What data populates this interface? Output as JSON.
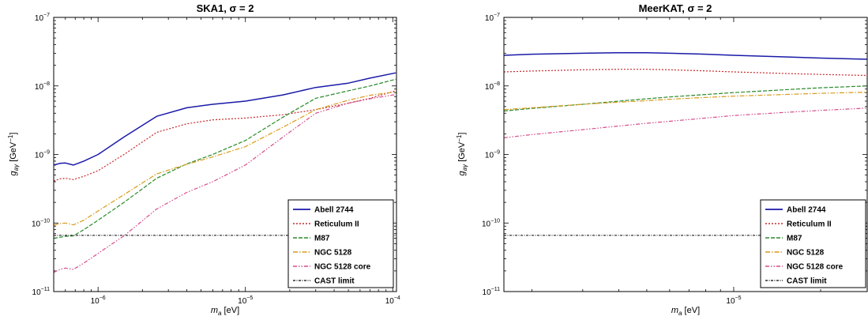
{
  "charts": [
    {
      "title": "SKA1, σ = 2",
      "xlabel": "m_a [eV]",
      "ylabel": "g_aγ [GeV^-1]"
    },
    {
      "title": "MeerKAT, σ = 2",
      "xlabel": "m_a [eV]",
      "ylabel": "g_aγ [GeV^-1]"
    }
  ],
  "chart_data": [
    {
      "type": "line",
      "title": "SKA1, σ = 2",
      "xlabel": "m_a [eV]",
      "ylabel": "g_aγ [GeV^-1]",
      "xscale": "log",
      "yscale": "log",
      "xlim": [
        5e-07,
        0.000106
      ],
      "ylim": [
        1e-11,
        1e-07
      ],
      "xticks": [
        {
          "v": 1e-06,
          "b": "10",
          "e": "−6"
        },
        {
          "v": 1e-05,
          "b": "10",
          "e": "−5"
        },
        {
          "v": 0.0001,
          "b": "10",
          "e": "−4"
        }
      ],
      "yticks": [
        {
          "v": 1e-11,
          "b": "10",
          "e": "−11"
        },
        {
          "v": 1e-10,
          "b": "10",
          "e": "−10"
        },
        {
          "v": 1e-09,
          "b": "10",
          "e": "−9"
        },
        {
          "v": 1e-08,
          "b": "10",
          "e": "−8"
        },
        {
          "v": 1e-07,
          "b": "10",
          "e": "−7"
        }
      ],
      "legend_position": "bottom-right",
      "series": [
        {
          "name": "Abell 2744",
          "color": "#1a1aa8",
          "dash": "",
          "width": 1.5,
          "x": [
            5e-07,
            5.5e-07,
            6e-07,
            6.8e-07,
            8e-07,
            1e-06,
            1.5e-06,
            2.5e-06,
            4e-06,
            6e-06,
            1e-05,
            1.8e-05,
            3e-05,
            5e-05,
            7e-05,
            0.000105
          ],
          "y": [
            7e-10,
            7.4e-10,
            7.5e-10,
            7e-10,
            8e-10,
            1e-09,
            1.8e-09,
            3.6e-09,
            4.8e-09,
            5.4e-09,
            6e-09,
            7.4e-09,
            9.5e-09,
            1.1e-08,
            1.3e-08,
            1.55e-08
          ]
        },
        {
          "name": "Reticulum II",
          "color": "#c8282c",
          "dash": "2,2",
          "width": 1.2,
          "x": [
            5e-07,
            5.5e-07,
            6e-07,
            6.8e-07,
            8e-07,
            1e-06,
            1.5e-06,
            2.5e-06,
            4e-06,
            6e-06,
            1e-05,
            1.8e-05,
            3e-05,
            5e-05,
            7e-05,
            0.000105
          ],
          "y": [
            4.1e-10,
            4.4e-10,
            4.5e-10,
            4.3e-10,
            4.8e-10,
            5.8e-10,
            1e-09,
            2.1e-09,
            2.8e-09,
            3.2e-09,
            3.4e-09,
            3.8e-09,
            4.5e-09,
            5.6e-09,
            6.6e-09,
            8.5e-09
          ]
        },
        {
          "name": "M87",
          "color": "#2a8a2a",
          "dash": "5,2",
          "width": 1.2,
          "x": [
            5e-07,
            5.5e-07,
            6e-07,
            6.8e-07,
            8e-07,
            1e-06,
            1.5e-06,
            2.5e-06,
            4e-06,
            6e-06,
            1e-05,
            1.8e-05,
            3e-05,
            5e-05,
            7e-05,
            0.000105
          ],
          "y": [
            6e-11,
            6.2e-11,
            6.4e-11,
            6.5e-11,
            8e-11,
            1.1e-10,
            2e-10,
            4.5e-10,
            7.3e-10,
            1e-09,
            1.6e-09,
            3.5e-09,
            6.6e-09,
            8.5e-09,
            1e-08,
            1.25e-08
          ]
        },
        {
          "name": "NGC 5128",
          "color": "#d89a1a",
          "dash": "6,2,1.5,2",
          "width": 1.2,
          "x": [
            5e-07,
            5.5e-07,
            6e-07,
            6.8e-07,
            8e-07,
            1e-06,
            1.5e-06,
            2.5e-06,
            4e-06,
            6e-06,
            1e-05,
            1.8e-05,
            3e-05,
            5e-05,
            7e-05,
            0.000105
          ],
          "y": [
            9.3e-11,
            9.8e-11,
            1e-10,
            9.4e-11,
            1.1e-10,
            1.5e-10,
            2.6e-10,
            5.2e-10,
            7.2e-10,
            9.2e-10,
            1.3e-09,
            2.5e-09,
            4.5e-09,
            6.2e-09,
            7.3e-09,
            8.2e-09
          ]
        },
        {
          "name": "NGC 5128 core",
          "color": "#d64d8c",
          "dash": "5,2,1.5,2,1.5,2",
          "width": 1.2,
          "x": [
            5e-07,
            5.5e-07,
            6e-07,
            6.8e-07,
            8e-07,
            1e-06,
            1.5e-06,
            2.5e-06,
            4e-06,
            6e-06,
            1e-05,
            1.8e-05,
            3e-05,
            5e-05,
            7e-05,
            0.000105
          ],
          "y": [
            1.9e-11,
            2.1e-11,
            2.2e-11,
            2.1e-11,
            2.6e-11,
            3.6e-11,
            6.5e-11,
            1.6e-10,
            2.8e-10,
            4e-10,
            7e-10,
            1.8e-09,
            4e-09,
            5.6e-09,
            6.5e-09,
            7.5e-09
          ]
        },
        {
          "name": "CAST limit",
          "color": "#000000",
          "dash": "3,1.5,1,1.5",
          "width": 1,
          "x": [
            5e-07,
            0.000106
          ],
          "y": [
            6.6e-11,
            6.6e-11
          ]
        }
      ]
    },
    {
      "type": "line",
      "title": "MeerKAT, σ = 2",
      "xlabel": "m_a [eV]",
      "ylabel": "g_aγ [GeV^-1]",
      "xscale": "log",
      "yscale": "log",
      "xlim": [
        1.6e-06,
        2.9e-05
      ],
      "ylim": [
        1e-11,
        1e-07
      ],
      "xticks": [
        {
          "v": 1e-05,
          "b": "10",
          "e": "−5"
        }
      ],
      "yticks": [
        {
          "v": 1e-11,
          "b": "10",
          "e": "−11"
        },
        {
          "v": 1e-10,
          "b": "10",
          "e": "−10"
        },
        {
          "v": 1e-09,
          "b": "10",
          "e": "−9"
        },
        {
          "v": 1e-08,
          "b": "10",
          "e": "−8"
        },
        {
          "v": 1e-07,
          "b": "10",
          "e": "−7"
        }
      ],
      "legend_position": "bottom-right",
      "series": [
        {
          "name": "Abell 2744",
          "color": "#1a1aa8",
          "dash": "",
          "width": 1.5,
          "x": [
            1.6e-06,
            2e-06,
            3e-06,
            4e-06,
            5e-06,
            6e-06,
            8e-06,
            1e-05,
            1.5e-05,
            2e-05,
            2.9e-05
          ],
          "y": [
            2.8e-08,
            2.9e-08,
            3e-08,
            3.05e-08,
            3.05e-08,
            3e-08,
            2.9e-08,
            2.8e-08,
            2.65e-08,
            2.55e-08,
            2.45e-08
          ]
        },
        {
          "name": "Reticulum II",
          "color": "#c8282c",
          "dash": "2,2",
          "width": 1.2,
          "x": [
            1.6e-06,
            2e-06,
            3e-06,
            4e-06,
            5e-06,
            6e-06,
            8e-06,
            1e-05,
            1.5e-05,
            2e-05,
            2.9e-05
          ],
          "y": [
            1.6e-08,
            1.65e-08,
            1.72e-08,
            1.75e-08,
            1.75e-08,
            1.72e-08,
            1.66e-08,
            1.6e-08,
            1.52e-08,
            1.47e-08,
            1.42e-08
          ]
        },
        {
          "name": "M87",
          "color": "#2a8a2a",
          "dash": "5,2",
          "width": 1.2,
          "x": [
            1.6e-06,
            2e-06,
            3e-06,
            4e-06,
            5e-06,
            6e-06,
            8e-06,
            1e-05,
            1.5e-05,
            2e-05,
            2.9e-05
          ],
          "y": [
            4.3e-09,
            4.7e-09,
            5.4e-09,
            6e-09,
            6.5e-09,
            6.9e-09,
            7.5e-09,
            8e-09,
            8.8e-09,
            9.4e-09,
            1e-08
          ]
        },
        {
          "name": "NGC 5128",
          "color": "#d89a1a",
          "dash": "6,2,1.5,2",
          "width": 1.2,
          "x": [
            1.6e-06,
            2e-06,
            3e-06,
            4e-06,
            5e-06,
            6e-06,
            8e-06,
            1e-05,
            1.5e-05,
            2e-05,
            2.9e-05
          ],
          "y": [
            4.5e-09,
            4.8e-09,
            5.4e-09,
            5.8e-09,
            6.1e-09,
            6.4e-09,
            6.8e-09,
            7.1e-09,
            7.5e-09,
            7.8e-09,
            8.1e-09
          ]
        },
        {
          "name": "NGC 5128 core",
          "color": "#d64d8c",
          "dash": "5,2,1.5,2,1.5,2",
          "width": 1.2,
          "x": [
            1.6e-06,
            2e-06,
            3e-06,
            4e-06,
            5e-06,
            6e-06,
            8e-06,
            1e-05,
            1.5e-05,
            2e-05,
            2.9e-05
          ],
          "y": [
            1.75e-09,
            1.95e-09,
            2.3e-09,
            2.6e-09,
            2.85e-09,
            3.05e-09,
            3.4e-09,
            3.7e-09,
            4.1e-09,
            4.4e-09,
            4.75e-09
          ]
        },
        {
          "name": "CAST limit",
          "color": "#000000",
          "dash": "3,1.5,1,1.5",
          "width": 1,
          "x": [
            1.6e-06,
            2.9e-05
          ],
          "y": [
            6.6e-11,
            6.6e-11
          ]
        }
      ]
    }
  ]
}
